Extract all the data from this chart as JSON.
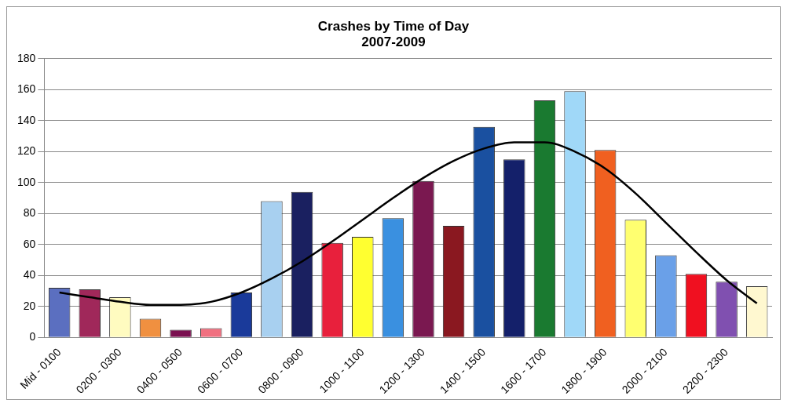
{
  "chart_data": {
    "type": "bar",
    "title": [
      "Crashes by Time of Day",
      "2007-2009"
    ],
    "categories": [
      "Mid - 0100",
      null,
      "0200 - 0300",
      null,
      "0400 - 0500",
      null,
      "0600 - 0700",
      null,
      "0800 - 0900",
      null,
      "1000 - 1100",
      null,
      "1200 - 1300",
      null,
      "1400 - 1500",
      null,
      "1600 - 1700",
      null,
      "1800 - 1900",
      null,
      "2000 - 2100",
      null,
      "2200 - 2300",
      null
    ],
    "series": [
      {
        "colors": [
          "#5b6fc0",
          "#a0285a",
          "#fffbc0",
          "#f09040",
          "#7a1050",
          "#f07080",
          "#1a3a9a",
          "#a8d0f0",
          "#1a2060",
          "#e8203c",
          "#ffff30",
          "#3a90e0",
          "#7a1850",
          "#8a1820",
          "#1a50a0",
          "#14206a",
          "#1a7a30",
          "#a0d8f8",
          "#f06020",
          "#ffff70",
          "#6aa0e8",
          "#f01020",
          "#8050b0",
          "#fff8d0"
        ],
        "values": [
          32,
          31,
          26,
          12,
          5,
          6,
          29,
          88,
          94,
          61,
          65,
          77,
          101,
          72,
          136,
          115,
          153,
          159,
          121,
          76,
          53,
          41,
          36,
          33
        ]
      },
      {
        "type": "line",
        "color": "#000000",
        "values": [
          29,
          26,
          23,
          21,
          21,
          23,
          29,
          38,
          49,
          62,
          76,
          90,
          103,
          114,
          122,
          126,
          126,
          120,
          109,
          93,
          74,
          55,
          37,
          22
        ]
      }
    ],
    "ylim": [
      0,
      180
    ],
    "yticks": [
      0,
      20,
      40,
      60,
      80,
      100,
      120,
      140,
      160,
      180
    ],
    "grid": "y",
    "legend": false,
    "marker": "none"
  }
}
